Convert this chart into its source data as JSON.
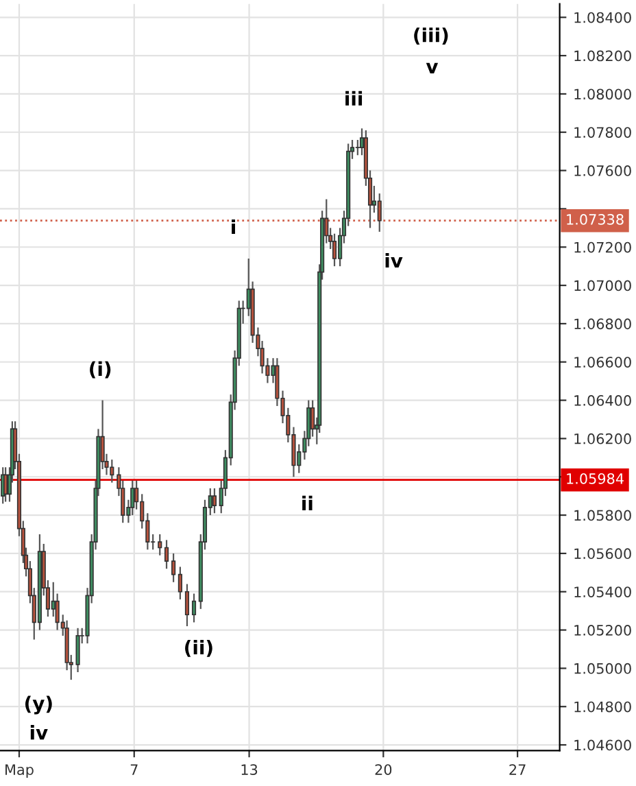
{
  "chart_data": {
    "type": "candlestick",
    "x": [
      0.15,
      0.29,
      0.5,
      0.64,
      0.79,
      1.0,
      1.21,
      1.36,
      1.57,
      1.78,
      2.07,
      2.28,
      2.5,
      2.78,
      2.99,
      3.28,
      3.49,
      3.71,
      4.06,
      4.28,
      4.56,
      4.78,
      4.99,
      5.13,
      5.35,
      5.56,
      5.84,
      6.2,
      6.41,
      6.7,
      6.91,
      7.12,
      7.41,
      7.7,
      7.98,
      8.34,
      8.69,
      9.05,
      9.4,
      9.76,
      10.12,
      10.47,
      10.69,
      10.97,
      11.19,
      11.54,
      11.76,
      12.04,
      12.25,
      12.47,
      12.68,
      12.97,
      13.18,
      13.46,
      13.68,
      13.96,
      14.25,
      14.46,
      14.75,
      15.03,
      15.32,
      15.6,
      15.89,
      16.1,
      16.31,
      16.53,
      16.67,
      16.81,
      17.03,
      17.24,
      17.45,
      17.74,
      17.95,
      18.17,
      18.38,
      18.66,
      18.88,
      19.09,
      19.31,
      19.52,
      19.8
    ],
    "ohlc": [
      [
        1.059,
        1.0605,
        1.0586,
        1.0601
      ],
      [
        1.0601,
        1.0605,
        1.0587,
        1.0591
      ],
      [
        1.0591,
        1.0605,
        1.0587,
        1.0601
      ],
      [
        1.0601,
        1.0629,
        1.0597,
        1.0625
      ],
      [
        1.0625,
        1.0629,
        1.0604,
        1.0608
      ],
      [
        1.0608,
        1.0612,
        1.0569,
        1.0573
      ],
      [
        1.0573,
        1.0577,
        1.0555,
        1.0559
      ],
      [
        1.0559,
        1.0563,
        1.0548,
        1.0552
      ],
      [
        1.0552,
        1.0556,
        1.0534,
        1.0538
      ],
      [
        1.0538,
        1.0542,
        1.0515,
        1.0524
      ],
      [
        1.0524,
        1.057,
        1.052,
        1.0561
      ],
      [
        1.0561,
        1.0565,
        1.0538,
        1.0542
      ],
      [
        1.0542,
        1.0546,
        1.0527,
        1.0531
      ],
      [
        1.0531,
        1.0545,
        1.0527,
        1.0535
      ],
      [
        1.0535,
        1.0539,
        1.052,
        1.0524
      ],
      [
        1.0524,
        1.0528,
        1.0517,
        1.0521
      ],
      [
        1.0521,
        1.0525,
        1.0499,
        1.0503
      ],
      [
        1.0503,
        1.0507,
        1.0494,
        1.0502
      ],
      [
        1.0502,
        1.0521,
        1.0498,
        1.0517
      ],
      [
        1.0517,
        1.0521,
        1.0513,
        1.0517
      ],
      [
        1.0517,
        1.0542,
        1.0513,
        1.0538
      ],
      [
        1.0538,
        1.057,
        1.0534,
        1.0566
      ],
      [
        1.0566,
        1.0598,
        1.0562,
        1.0594
      ],
      [
        1.0594,
        1.0625,
        1.059,
        1.0621
      ],
      [
        1.0621,
        1.064,
        1.0604,
        1.0608
      ],
      [
        1.0608,
        1.0612,
        1.0601,
        1.0605
      ],
      [
        1.0605,
        1.0609,
        1.0597,
        1.0601
      ],
      [
        1.0601,
        1.0605,
        1.059,
        1.0594
      ],
      [
        1.0594,
        1.0598,
        1.0576,
        1.058
      ],
      [
        1.058,
        1.0588,
        1.0576,
        1.0584
      ],
      [
        1.0584,
        1.0598,
        1.058,
        1.0594
      ],
      [
        1.0594,
        1.0598,
        1.0583,
        1.0587
      ],
      [
        1.0587,
        1.0591,
        1.0573,
        1.0577
      ],
      [
        1.0577,
        1.0581,
        1.0562,
        1.0566
      ],
      [
        1.0566,
        1.057,
        1.0562,
        1.0566
      ],
      [
        1.0566,
        1.057,
        1.0559,
        1.0563
      ],
      [
        1.0563,
        1.0567,
        1.0552,
        1.0556
      ],
      [
        1.0556,
        1.056,
        1.0545,
        1.0549
      ],
      [
        1.0549,
        1.0553,
        1.0536,
        1.054
      ],
      [
        1.054,
        1.0544,
        1.0522,
        1.0528
      ],
      [
        1.0528,
        1.0539,
        1.0524,
        1.0535
      ],
      [
        1.0535,
        1.057,
        1.0531,
        1.0566
      ],
      [
        1.0566,
        1.0588,
        1.0562,
        1.0584
      ],
      [
        1.0584,
        1.0594,
        1.058,
        1.059
      ],
      [
        1.059,
        1.0594,
        1.0581,
        1.0585
      ],
      [
        1.0585,
        1.0598,
        1.0581,
        1.0594
      ],
      [
        1.0594,
        1.0614,
        1.059,
        1.061
      ],
      [
        1.061,
        1.0643,
        1.0606,
        1.0639
      ],
      [
        1.0639,
        1.0666,
        1.0635,
        1.0662
      ],
      [
        1.0662,
        1.0692,
        1.0658,
        1.0688
      ],
      [
        1.0688,
        1.0692,
        1.068,
        1.0688
      ],
      [
        1.0688,
        1.0714,
        1.0684,
        1.0698
      ],
      [
        1.0698,
        1.0702,
        1.067,
        1.0674
      ],
      [
        1.0674,
        1.0678,
        1.0663,
        1.0667
      ],
      [
        1.0667,
        1.0671,
        1.0654,
        1.0658
      ],
      [
        1.0658,
        1.0662,
        1.0649,
        1.0653
      ],
      [
        1.0653,
        1.0662,
        1.0649,
        1.0658
      ],
      [
        1.0658,
        1.0662,
        1.0637,
        1.0641
      ],
      [
        1.0641,
        1.0645,
        1.0628,
        1.0632
      ],
      [
        1.0632,
        1.0636,
        1.0618,
        1.0622
      ],
      [
        1.0622,
        1.0626,
        1.06,
        1.0606
      ],
      [
        1.0606,
        1.0617,
        1.0602,
        1.0613
      ],
      [
        1.0613,
        1.0624,
        1.0609,
        1.062
      ],
      [
        1.062,
        1.064,
        1.0616,
        1.0636
      ],
      [
        1.0636,
        1.064,
        1.0621,
        1.0625
      ],
      [
        1.0625,
        1.0631,
        1.0617,
        1.0627
      ],
      [
        1.0627,
        1.0711,
        1.0623,
        1.0707
      ],
      [
        1.0707,
        1.0739,
        1.0703,
        1.0735
      ],
      [
        1.0735,
        1.0745,
        1.0722,
        1.0726
      ],
      [
        1.0726,
        1.073,
        1.0719,
        1.0723
      ],
      [
        1.0723,
        1.0727,
        1.071,
        1.0714
      ],
      [
        1.0714,
        1.073,
        1.071,
        1.0726
      ],
      [
        1.0726,
        1.0739,
        1.0722,
        1.0735
      ],
      [
        1.0735,
        1.0774,
        1.0731,
        1.077
      ],
      [
        1.077,
        1.0776,
        1.0766,
        1.0772
      ],
      [
        1.0772,
        1.0776,
        1.0768,
        1.0772
      ],
      [
        1.0772,
        1.0782,
        1.0768,
        1.0777
      ],
      [
        1.0777,
        1.0781,
        1.0752,
        1.0756
      ],
      [
        1.0756,
        1.076,
        1.073,
        1.0742
      ],
      [
        1.0742,
        1.0752,
        1.0738,
        1.0744
      ],
      [
        1.0744,
        1.0748,
        1.0728,
        1.07338
      ]
    ],
    "colors": [
      "#3f8f62",
      "#b9533e",
      "#3f8f62",
      "#3f8f62",
      "#b9533e",
      "#b9533e",
      "#b9533e",
      "#b9533e",
      "#b9533e",
      "#b9533e",
      "#3f8f62",
      "#b9533e",
      "#b9533e",
      "#3f8f62",
      "#b9533e",
      "#b9533e",
      "#b9533e",
      "#b9533e",
      "#3f8f62",
      "#3f8f62",
      "#3f8f62",
      "#3f8f62",
      "#3f8f62",
      "#3f8f62",
      "#b9533e",
      "#b9533e",
      "#b9533e",
      "#b9533e",
      "#b9533e",
      "#3f8f62",
      "#3f8f62",
      "#b9533e",
      "#b9533e",
      "#b9533e",
      "#3f8f62",
      "#b9533e",
      "#b9533e",
      "#b9533e",
      "#b9533e",
      "#b9533e",
      "#3f8f62",
      "#3f8f62",
      "#3f8f62",
      "#3f8f62",
      "#b9533e",
      "#3f8f62",
      "#3f8f62",
      "#3f8f62",
      "#3f8f62",
      "#3f8f62",
      "#3f8f62",
      "#3f8f62",
      "#b9533e",
      "#b9533e",
      "#b9533e",
      "#b9533e",
      "#3f8f62",
      "#b9533e",
      "#b9533e",
      "#b9533e",
      "#b9533e",
      "#3f8f62",
      "#3f8f62",
      "#3f8f62",
      "#b9533e",
      "#3f8f62",
      "#3f8f62",
      "#3f8f62",
      "#b9533e",
      "#b9533e",
      "#b9533e",
      "#3f8f62",
      "#3f8f62",
      "#3f8f62",
      "#3f8f62",
      "#3f8f62",
      "#3f8f62",
      "#b9533e",
      "#b9533e",
      "#3f8f62",
      "#b9533e"
    ],
    "xlim": [
      0.0,
      29.2
    ],
    "xticks": [
      {
        "value": 1,
        "label": "Мар"
      },
      7,
      13,
      20,
      27
    ],
    "ylim": [
      1.0457,
      1.0847
    ],
    "yticks": [
      {
        "value": 1.046,
        "label": "1.04600"
      },
      {
        "value": 1.048,
        "label": "1.04800"
      },
      {
        "value": 1.05,
        "label": "1.05000"
      },
      {
        "value": 1.052,
        "label": "1.05200"
      },
      {
        "value": 1.054,
        "label": "1.05400"
      },
      {
        "value": 1.056,
        "label": "1.05600"
      },
      {
        "value": 1.058,
        "label": "1.05800"
      },
      {
        "value": 1.06,
        "label": null
      },
      {
        "value": 1.062,
        "label": "1.06200"
      },
      {
        "value": 1.064,
        "label": "1.06400"
      },
      {
        "value": 1.066,
        "label": "1.06600"
      },
      {
        "value": 1.068,
        "label": "1.06800"
      },
      {
        "value": 1.07,
        "label": "1.07000"
      },
      {
        "value": 1.072,
        "label": "1.07200"
      },
      {
        "value": 1.074,
        "label": null
      },
      {
        "value": 1.076,
        "label": "1.07600"
      },
      {
        "value": 1.078,
        "label": "1.07800"
      },
      {
        "value": 1.08,
        "label": "1.08000"
      },
      {
        "value": 1.082,
        "label": "1.08200"
      },
      {
        "value": 1.084,
        "label": "1.08400"
      }
    ],
    "grid": true,
    "ref_lines": [
      {
        "axis": "y",
        "value": 1.07338,
        "label": "1.07338",
        "color": "#d0604a",
        "line_style": "dotted"
      },
      {
        "axis": "y",
        "value": 1.05984,
        "label": "1.05984",
        "color": "#e00000",
        "line_style": "solid"
      }
    ],
    "annotations": [
      "(i)",
      "(ii)",
      "i",
      "ii",
      "iii",
      "iv",
      "(iii)",
      "v",
      "(y)",
      "iv"
    ]
  }
}
